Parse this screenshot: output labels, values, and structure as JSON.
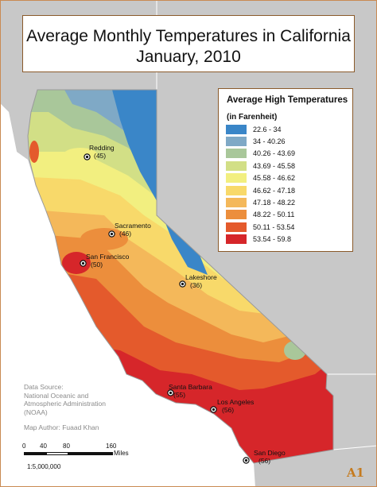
{
  "title": {
    "line1": "Average Monthly Temperatures in California",
    "line2": "January, 2010"
  },
  "legend": {
    "title": "Average High Temperatures",
    "subtitle": "(in Farenheit)",
    "items": [
      {
        "label": "22.6 - 34",
        "color": "#3a86c8"
      },
      {
        "label": "34 - 40.26",
        "color": "#7fa9c6"
      },
      {
        "label": "40.26 - 43.69",
        "color": "#a9c79a"
      },
      {
        "label": "43.69 - 45.58",
        "color": "#d2df86"
      },
      {
        "label": "45.58 - 46.62",
        "color": "#f2ef80"
      },
      {
        "label": "46.62 - 47.18",
        "color": "#f8d96a"
      },
      {
        "label": "47.18 - 48.22",
        "color": "#f4b85a"
      },
      {
        "label": "48.22 - 50.11",
        "color": "#ec8e3c"
      },
      {
        "label": "50.11 - 53.54",
        "color": "#e45a2c"
      },
      {
        "label": "53.54 - 59.8",
        "color": "#d6262a"
      }
    ]
  },
  "cities": [
    {
      "name": "Redding",
      "value": "(45)"
    },
    {
      "name": "Sacramento",
      "value": "(46)"
    },
    {
      "name": "San Francisco",
      "value": "(50)"
    },
    {
      "name": "Lakeshore",
      "value": "(36)"
    },
    {
      "name": "Santa Barbara",
      "value": "(55)"
    },
    {
      "name": "Los Angeles",
      "value": "(56)"
    },
    {
      "name": "San Diego",
      "value": "(56)"
    }
  ],
  "credits": {
    "source_label": "Data Source:",
    "source_line1": "National Oceanic and",
    "source_line2": "Atmospheric Administration",
    "source_line3": "(NOAA)",
    "author": "Map Author: Fuaad Khan"
  },
  "scale": {
    "ticks": [
      "0",
      "40",
      "80",
      "160"
    ],
    "unit": "Miles",
    "ratio": "1:5,000,000"
  },
  "tag": "A1"
}
